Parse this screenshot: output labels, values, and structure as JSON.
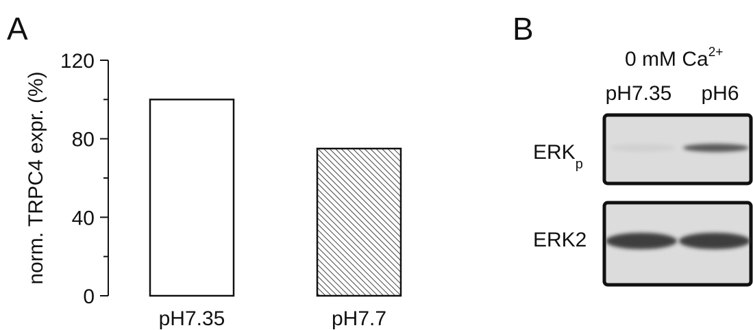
{
  "panel_a": {
    "letter": "A",
    "ylabel": "norm. TRPC4 expr. (%)"
  },
  "panel_b": {
    "letter": "B",
    "condition": "0 mM Ca",
    "condition_sup": "2+",
    "lanes": [
      "pH7.35",
      "pH6"
    ],
    "rows": [
      {
        "label": "ERK",
        "sub": "p",
        "band_intensity": [
          0.06,
          0.75
        ]
      },
      {
        "label": "ERK2",
        "sub": "",
        "band_intensity": [
          0.9,
          0.9
        ]
      }
    ],
    "colors": {
      "blot_bg": "#dcdcdc",
      "band": "#2f2f2f",
      "frame": "#111111"
    }
  },
  "chart_data": {
    "type": "bar",
    "categories": [
      "pH7.35",
      "pH7.7"
    ],
    "values": [
      100,
      75
    ],
    "title": "",
    "xlabel": "",
    "ylabel": "norm. TRPC4 expr. (%)",
    "ylim": [
      0,
      120
    ],
    "yticks": [
      0,
      40,
      80,
      120
    ],
    "grid": false,
    "bar_fills": [
      "#ffffff",
      "hatched"
    ]
  }
}
